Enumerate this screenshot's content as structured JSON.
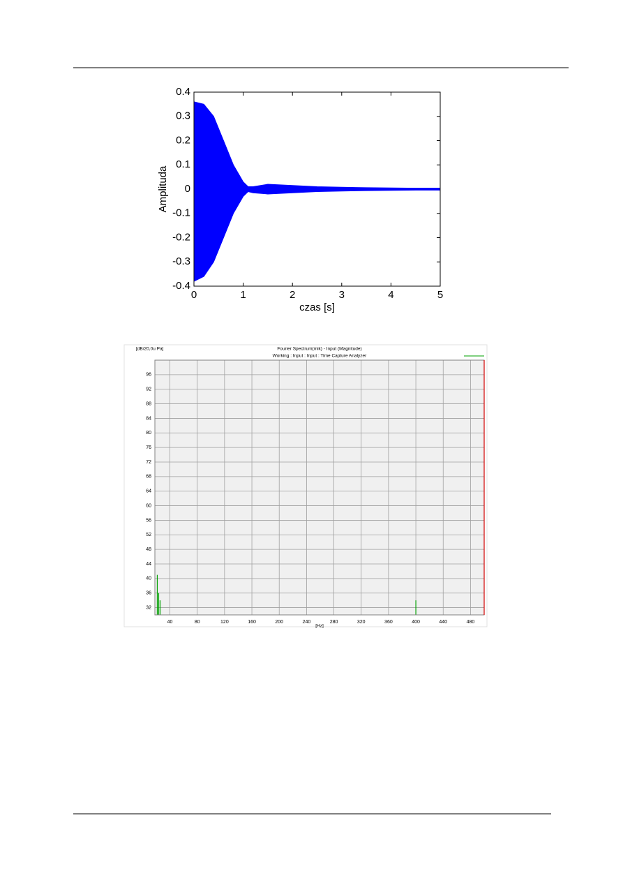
{
  "chart_data": [
    {
      "type": "area",
      "xlabel": "czas [s]",
      "ylabel": "Amplituda",
      "x": [
        0,
        0.2,
        0.4,
        0.6,
        0.8,
        1.0,
        1.1,
        1.2,
        1.5,
        2.0,
        2.5,
        3.0,
        3.5,
        4.0,
        4.5,
        5.0
      ],
      "series": [
        {
          "color": "#0000ff",
          "values": [
            0.36,
            0.35,
            0.3,
            0.2,
            0.1,
            0.03,
            0.01,
            0.01,
            0.02,
            0.015,
            0.01,
            0.008,
            0.006,
            0.005,
            0.004,
            0.004
          ]
        },
        {
          "color": "#0000ff",
          "values": [
            -0.38,
            -0.36,
            -0.3,
            -0.2,
            -0.1,
            -0.03,
            -0.01,
            -0.015,
            -0.02,
            -0.015,
            -0.01,
            -0.008,
            -0.006,
            -0.005,
            -0.004,
            -0.004
          ]
        }
      ],
      "xlim": [
        0,
        5
      ],
      "xticks": [
        0,
        1,
        2,
        3,
        4,
        5
      ],
      "ylim": [
        -0.4,
        0.4
      ],
      "yticks": [
        -0.4,
        -0.3,
        -0.2,
        -0.1,
        0,
        0.1,
        0.2,
        0.3,
        0.4
      ],
      "grid": false
    },
    {
      "type": "bar",
      "title": "Fourier Spectrum(mik) - Input (Magnitude)",
      "subtitle": "Working : Input : Input : Time Capture Analyzer",
      "ylabel": "[dB/20,0u Pa]",
      "xlabel": "[Hz]",
      "x": [
        21.5,
        23.6,
        25.6,
        400
      ],
      "values": [
        41,
        36,
        34,
        34
      ],
      "color": "#00a000",
      "xlim": [
        18,
        500
      ],
      "xticks": [
        40,
        80,
        120,
        160,
        200,
        240,
        280,
        320,
        360,
        400,
        440,
        480
      ],
      "ylim": [
        30,
        100
      ],
      "yticks": [
        32,
        36,
        40,
        44,
        48,
        52,
        56,
        60,
        64,
        68,
        72,
        76,
        80,
        84,
        88,
        92,
        96
      ],
      "grid": true
    }
  ]
}
